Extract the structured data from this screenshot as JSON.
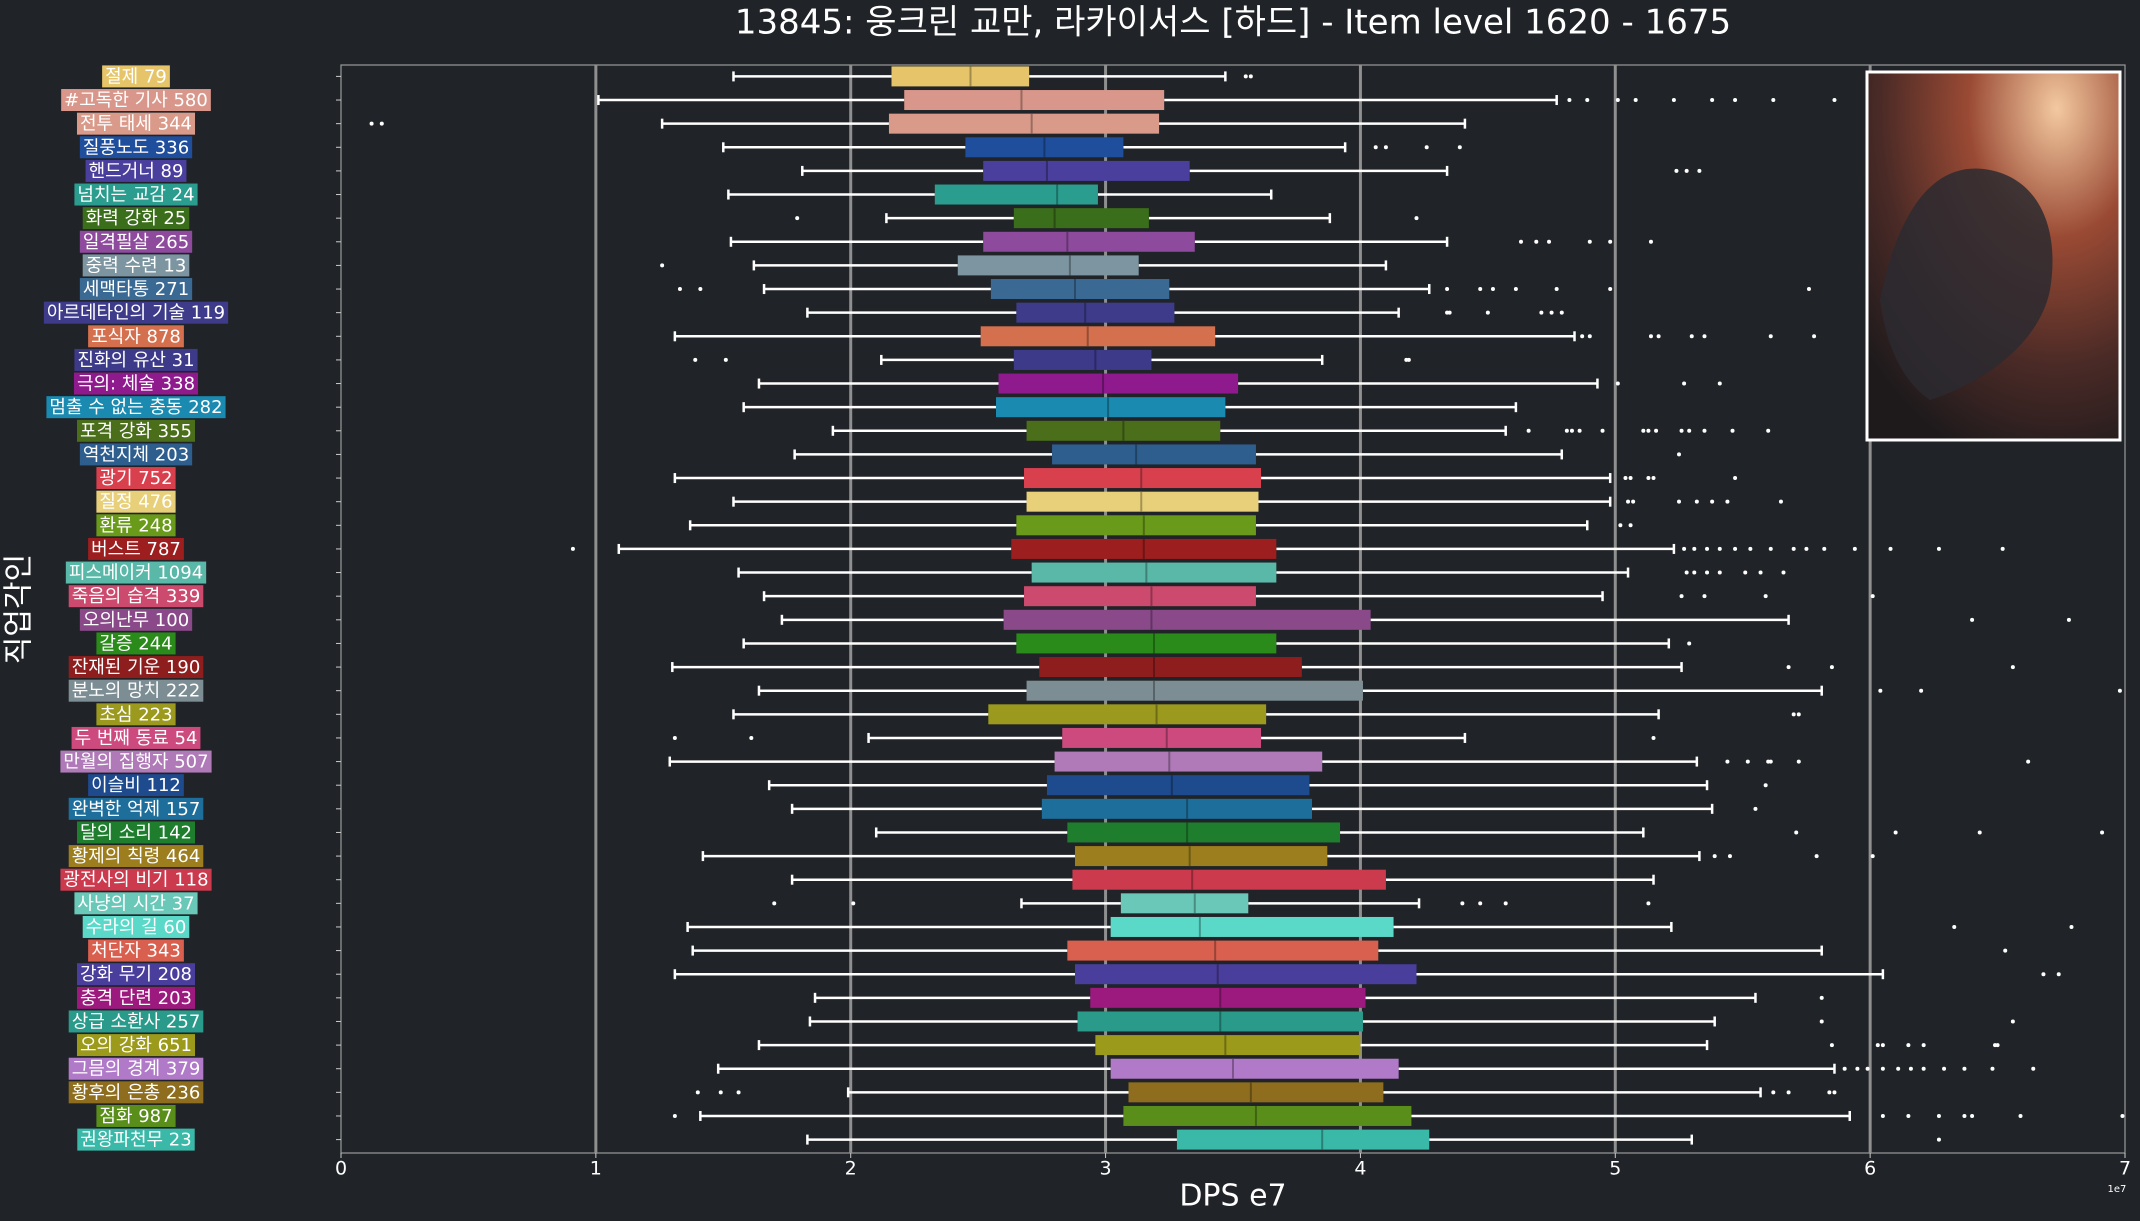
{
  "chart_data": {
    "type": "box",
    "title": "13845: 웅크린 교만, 라카이서스 [하드] - Item level 1620 - 1675",
    "xlabel": "DPS e7",
    "ylabel": "직업각인",
    "scale_note": "1e7",
    "xlim": [
      0,
      7
    ],
    "xticks": [
      0,
      1,
      2,
      3,
      4,
      5,
      6,
      7
    ],
    "grid": true,
    "boxes": [
      {
        "name": "절제 79",
        "color": "#e6c56a",
        "whislo": 1.54,
        "q1": 2.16,
        "med": 2.47,
        "q3": 2.7,
        "whishi": 3.47,
        "fliers": [
          3.55,
          3.57
        ]
      },
      {
        "name": "#고독한 기사 580",
        "color": "#d8978a",
        "whislo": 1.01,
        "q1": 2.21,
        "med": 2.67,
        "q3": 3.23,
        "whishi": 4.77,
        "fliers": [
          4.82,
          4.89,
          5.01,
          5.08,
          5.23,
          5.38,
          5.47,
          5.62,
          5.86
        ]
      },
      {
        "name": "전투 태세 344",
        "color": "#d99a8a",
        "whislo": 1.26,
        "q1": 2.15,
        "med": 2.71,
        "q3": 3.21,
        "whishi": 4.41,
        "fliers": [
          0.12,
          0.16
        ]
      },
      {
        "name": "질풍노도 336",
        "color": "#1f4e9c",
        "whislo": 1.5,
        "q1": 2.45,
        "med": 2.76,
        "q3": 3.07,
        "whishi": 3.94,
        "fliers": [
          4.06,
          4.1,
          4.26,
          4.39
        ]
      },
      {
        "name": "핸드거너 89",
        "color": "#4a3f9c",
        "whislo": 1.81,
        "q1": 2.52,
        "med": 2.77,
        "q3": 3.33,
        "whishi": 4.34,
        "fliers": [
          5.24,
          5.28,
          5.33
        ]
      },
      {
        "name": "넘치는 교감 24",
        "color": "#2a9d8f",
        "whislo": 1.52,
        "q1": 2.33,
        "med": 2.81,
        "q3": 2.97,
        "whishi": 3.65,
        "fliers": []
      },
      {
        "name": "화력 강화 25",
        "color": "#3a6e1a",
        "whislo": 2.14,
        "q1": 2.64,
        "med": 2.8,
        "q3": 3.17,
        "whishi": 3.88,
        "fliers": [
          1.79,
          4.22
        ]
      },
      {
        "name": "일격필살 265",
        "color": "#8e4a9c",
        "whislo": 1.53,
        "q1": 2.52,
        "med": 2.85,
        "q3": 3.35,
        "whishi": 4.34,
        "fliers": [
          4.63,
          4.69,
          4.74,
          4.9,
          4.98,
          5.14
        ]
      },
      {
        "name": "중력 수련 13",
        "color": "#7c95a0",
        "whislo": 1.62,
        "q1": 2.42,
        "med": 2.86,
        "q3": 3.13,
        "whishi": 4.1,
        "fliers": [
          1.26
        ]
      },
      {
        "name": "세맥타통 271",
        "color": "#3a6a94",
        "whislo": 1.66,
        "q1": 2.55,
        "med": 2.88,
        "q3": 3.25,
        "whishi": 4.27,
        "fliers": [
          1.33,
          1.41,
          4.34,
          4.47,
          4.52,
          4.61,
          4.77,
          4.98,
          5.76
        ]
      },
      {
        "name": "아르데타인의 기술 119",
        "color": "#3e3c8a",
        "whislo": 1.83,
        "q1": 2.65,
        "med": 2.92,
        "q3": 3.27,
        "whishi": 4.15,
        "fliers": [
          4.34,
          4.35,
          4.5,
          4.71,
          4.75,
          4.79
        ]
      },
      {
        "name": "포식자 878",
        "color": "#d4704e",
        "whislo": 1.31,
        "q1": 2.51,
        "med": 2.93,
        "q3": 3.43,
        "whishi": 4.84,
        "fliers": [
          4.87,
          4.9,
          5.14,
          5.17,
          5.3,
          5.35,
          5.61,
          5.78
        ]
      },
      {
        "name": "진화의 유산 31",
        "color": "#3e3a8a",
        "whislo": 2.12,
        "q1": 2.64,
        "med": 2.96,
        "q3": 3.18,
        "whishi": 3.85,
        "fliers": [
          1.39,
          1.51,
          4.18,
          4.19
        ]
      },
      {
        "name": "극의: 체술 338",
        "color": "#8e1a8e",
        "whislo": 1.64,
        "q1": 2.58,
        "med": 2.99,
        "q3": 3.52,
        "whishi": 4.93,
        "fliers": [
          5.01,
          5.27,
          5.41
        ]
      },
      {
        "name": "멈출 수 없는 충동 282",
        "color": "#1a8ab0",
        "whislo": 1.58,
        "q1": 2.57,
        "med": 3.01,
        "q3": 3.47,
        "whishi": 4.61,
        "fliers": []
      },
      {
        "name": "포격 강화 355",
        "color": "#4a6e1a",
        "whislo": 1.93,
        "q1": 2.69,
        "med": 3.07,
        "q3": 3.45,
        "whishi": 4.57,
        "fliers": [
          4.66,
          4.81,
          4.83,
          4.86,
          4.95,
          5.11,
          5.13,
          5.16,
          5.26,
          5.29,
          5.35,
          5.46,
          5.6
        ]
      },
      {
        "name": "역천지체 203",
        "color": "#2e5e8e",
        "whislo": 1.78,
        "q1": 2.79,
        "med": 3.12,
        "q3": 3.59,
        "whishi": 4.79,
        "fliers": [
          5.25
        ]
      },
      {
        "name": "광기 752",
        "color": "#d9404e",
        "whislo": 1.31,
        "q1": 2.68,
        "med": 3.14,
        "q3": 3.61,
        "whishi": 4.98,
        "fliers": [
          5.04,
          5.06,
          5.13,
          5.15,
          5.47
        ]
      },
      {
        "name": "질정 476",
        "color": "#e8d07a",
        "whislo": 1.54,
        "q1": 2.69,
        "med": 3.14,
        "q3": 3.6,
        "whishi": 4.98,
        "fliers": [
          5.05,
          5.07,
          5.25,
          5.32,
          5.38,
          5.44,
          5.65
        ]
      },
      {
        "name": "환류 248",
        "color": "#6a9a1a",
        "whislo": 1.37,
        "q1": 2.65,
        "med": 3.15,
        "q3": 3.59,
        "whishi": 4.89,
        "fliers": [
          5.02,
          5.06
        ]
      },
      {
        "name": "버스트 787",
        "color": "#9c1e1e",
        "whislo": 1.09,
        "q1": 2.63,
        "med": 3.15,
        "q3": 3.67,
        "whishi": 5.23,
        "fliers": [
          0.91,
          5.27,
          5.31,
          5.36,
          5.41,
          5.47,
          5.53,
          5.61,
          5.7,
          5.75,
          5.82,
          5.94,
          6.08,
          6.27,
          6.52
        ]
      },
      {
        "name": "피스메이커 1094",
        "color": "#5ab8a8",
        "whislo": 1.56,
        "q1": 2.71,
        "med": 3.16,
        "q3": 3.67,
        "whishi": 5.05,
        "fliers": [
          5.28,
          5.31,
          5.36,
          5.41,
          5.51,
          5.57,
          5.66
        ]
      },
      {
        "name": "죽음의 습격 339",
        "color": "#cc4a6e",
        "whislo": 1.66,
        "q1": 2.68,
        "med": 3.18,
        "q3": 3.59,
        "whishi": 4.95,
        "fliers": [
          5.26,
          5.35,
          5.59,
          6.01
        ]
      },
      {
        "name": "오의난무 100",
        "color": "#8a4a8a",
        "whislo": 1.73,
        "q1": 2.6,
        "med": 3.18,
        "q3": 4.04,
        "whishi": 5.68,
        "fliers": [
          6.4,
          6.78
        ]
      },
      {
        "name": "갈증 244",
        "color": "#2a8a1a",
        "whislo": 1.58,
        "q1": 2.65,
        "med": 3.19,
        "q3": 3.67,
        "whishi": 5.21,
        "fliers": [
          5.29
        ]
      },
      {
        "name": "잔재된 기운 190",
        "color": "#8e1e1e",
        "whislo": 1.3,
        "q1": 2.74,
        "med": 3.19,
        "q3": 3.77,
        "whishi": 5.26,
        "fliers": [
          5.68,
          5.85,
          6.56
        ]
      },
      {
        "name": "분노의 망치 222",
        "color": "#7c8e94",
        "whislo": 1.64,
        "q1": 2.69,
        "med": 3.19,
        "q3": 4.01,
        "whishi": 5.81,
        "fliers": [
          6.04,
          6.2,
          6.98
        ]
      },
      {
        "name": "초심 223",
        "color": "#9c9a1e",
        "whislo": 1.54,
        "q1": 2.54,
        "med": 3.2,
        "q3": 3.63,
        "whishi": 5.17,
        "fliers": [
          5.7,
          5.72
        ]
      },
      {
        "name": "두 번째 동료 54",
        "color": "#cc4a7e",
        "whislo": 2.07,
        "q1": 2.83,
        "med": 3.24,
        "q3": 3.61,
        "whishi": 4.41,
        "fliers": [
          1.31,
          1.61,
          5.15
        ]
      },
      {
        "name": "만월의 집행자 507",
        "color": "#b07ab8",
        "whislo": 1.29,
        "q1": 2.8,
        "med": 3.25,
        "q3": 3.85,
        "whishi": 5.32,
        "fliers": [
          5.44,
          5.52,
          5.6,
          5.61,
          5.72,
          6.62
        ]
      },
      {
        "name": "이슬비 112",
        "color": "#1e4a8e",
        "whislo": 1.68,
        "q1": 2.77,
        "med": 3.26,
        "q3": 3.8,
        "whishi": 5.36,
        "fliers": [
          5.59
        ]
      },
      {
        "name": "완벽한 억제 157",
        "color": "#1e6e9c",
        "whislo": 1.77,
        "q1": 2.75,
        "med": 3.32,
        "q3": 3.81,
        "whishi": 5.38,
        "fliers": [
          5.55
        ]
      },
      {
        "name": "달의 소리 142",
        "color": "#1e7e2e",
        "whislo": 2.1,
        "q1": 2.85,
        "med": 3.32,
        "q3": 3.92,
        "whishi": 5.11,
        "fliers": [
          5.71,
          6.1,
          6.43,
          6.91
        ]
      },
      {
        "name": "황제의 칙령 464",
        "color": "#9c7e1e",
        "whislo": 1.42,
        "q1": 2.88,
        "med": 3.33,
        "q3": 3.87,
        "whishi": 5.33,
        "fliers": [
          5.39,
          5.45,
          5.79,
          6.01
        ]
      },
      {
        "name": "광전사의 비기 118",
        "color": "#cc3a4e",
        "whislo": 1.77,
        "q1": 2.87,
        "med": 3.34,
        "q3": 4.1,
        "whishi": 5.15,
        "fliers": []
      },
      {
        "name": "사냥의 시간 37",
        "color": "#6ac8b8",
        "whislo": 2.67,
        "q1": 3.06,
        "med": 3.35,
        "q3": 3.56,
        "whishi": 4.23,
        "fliers": [
          1.7,
          2.01,
          4.4,
          4.47,
          4.57,
          5.13
        ]
      },
      {
        "name": "수라의 길 60",
        "color": "#5ad8c8",
        "whislo": 1.36,
        "q1": 3.02,
        "med": 3.37,
        "q3": 4.13,
        "whishi": 5.22,
        "fliers": [
          6.33,
          6.79
        ]
      },
      {
        "name": "처단자 343",
        "color": "#d9604e",
        "whislo": 1.38,
        "q1": 2.85,
        "med": 3.43,
        "q3": 4.07,
        "whishi": 5.81,
        "fliers": [
          6.53
        ]
      },
      {
        "name": "강화 무기 208",
        "color": "#4a3e9c",
        "whislo": 1.31,
        "q1": 2.88,
        "med": 3.44,
        "q3": 4.22,
        "whishi": 6.05,
        "fliers": [
          6.68,
          6.74
        ]
      },
      {
        "name": "충격 단련 203",
        "color": "#9c1a7e",
        "whislo": 1.86,
        "q1": 2.94,
        "med": 3.45,
        "q3": 4.02,
        "whishi": 5.55,
        "fliers": [
          5.81
        ]
      },
      {
        "name": "상급 소환사 257",
        "color": "#2a9a8a",
        "whislo": 1.84,
        "q1": 2.89,
        "med": 3.45,
        "q3": 4.01,
        "whishi": 5.39,
        "fliers": [
          5.81,
          6.56
        ]
      },
      {
        "name": "오의 강화 651",
        "color": "#9c9a1a",
        "whislo": 1.64,
        "q1": 2.96,
        "med": 3.47,
        "q3": 4.0,
        "whishi": 5.36,
        "fliers": [
          5.85,
          6.03,
          6.05,
          6.15,
          6.21,
          6.49,
          6.5
        ]
      },
      {
        "name": "그믐의 경계 379",
        "color": "#b07ac8",
        "whislo": 1.48,
        "q1": 3.02,
        "med": 3.5,
        "q3": 4.15,
        "whishi": 5.86,
        "fliers": [
          5.9,
          5.95,
          5.99,
          6.05,
          6.11,
          6.16,
          6.21,
          6.29,
          6.37,
          6.48,
          6.64
        ]
      },
      {
        "name": "황후의 은총 236",
        "color": "#8e6e1e",
        "whislo": 1.99,
        "q1": 3.09,
        "med": 3.57,
        "q3": 4.09,
        "whishi": 5.57,
        "fliers": [
          1.4,
          1.49,
          1.56,
          5.62,
          5.68,
          5.84,
          5.86
        ]
      },
      {
        "name": "점화 987",
        "color": "#5a8e1a",
        "whislo": 1.41,
        "q1": 3.07,
        "med": 3.59,
        "q3": 4.2,
        "whishi": 5.92,
        "fliers": [
          1.31,
          6.05,
          6.15,
          6.27,
          6.37,
          6.4,
          6.59,
          6.99
        ]
      },
      {
        "name": "권왕파천무 23",
        "color": "#3ab8a8",
        "whislo": 1.83,
        "q1": 3.28,
        "med": 3.85,
        "q3": 4.27,
        "whishi": 5.3,
        "fliers": [
          6.27
        ]
      }
    ]
  }
}
